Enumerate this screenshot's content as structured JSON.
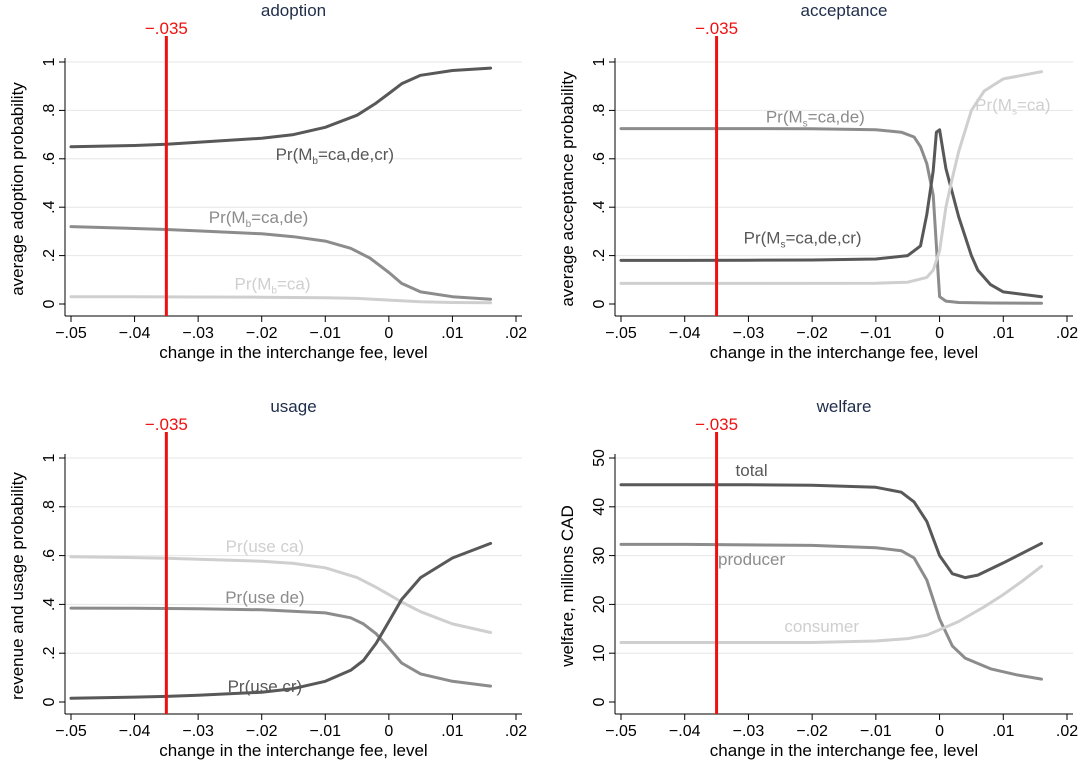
{
  "colors": {
    "dark": "#585858",
    "medium": "#8c8c8c",
    "light": "#cfcfcf",
    "reference": "#ee1111",
    "title": "#1f2d4b",
    "axis": "#000000",
    "grid": "#e6e6e6",
    "background": "#ffffff"
  },
  "chart_data": [
    {
      "id": "adoption",
      "type": "line",
      "title": "adoption",
      "xlabel": "change in the interchange fee, level",
      "ylabel": "average adoption probability",
      "xlim": [
        -0.05,
        0.02
      ],
      "ylim": [
        0,
        1
      ],
      "x_ticks": [
        -0.05,
        -0.04,
        -0.03,
        -0.02,
        -0.01,
        0,
        0.01,
        0.02
      ],
      "x_tick_labels": [
        "−.05",
        "−.04",
        "−.03",
        "−.02",
        "−.01",
        "0",
        ".01",
        ".02"
      ],
      "y_ticks": [
        0,
        0.2,
        0.4,
        0.6,
        0.8,
        1
      ],
      "y_tick_labels": [
        "0",
        ".2",
        ".4",
        ".6",
        ".8",
        "1"
      ],
      "grid": true,
      "reference_line": {
        "x": -0.035,
        "label": "−.035"
      },
      "series": [
        {
          "label_base": "Pr(M",
          "label_sub": "b",
          "label_rest": "=ca,de,cr)",
          "color": "dark",
          "label_anchor": [
            -0.0085,
            0.62
          ],
          "points": [
            [
              -0.05,
              0.65
            ],
            [
              -0.04,
              0.655
            ],
            [
              -0.035,
              0.66
            ],
            [
              -0.03,
              0.668
            ],
            [
              -0.02,
              0.685
            ],
            [
              -0.015,
              0.7
            ],
            [
              -0.01,
              0.73
            ],
            [
              -0.005,
              0.78
            ],
            [
              -0.002,
              0.83
            ],
            [
              0,
              0.87
            ],
            [
              0.002,
              0.91
            ],
            [
              0.005,
              0.945
            ],
            [
              0.01,
              0.965
            ],
            [
              0.016,
              0.975
            ]
          ]
        },
        {
          "label_base": "Pr(M",
          "label_sub": "b",
          "label_rest": "=ca,de)",
          "color": "medium",
          "label_anchor": [
            -0.0205,
            0.36
          ],
          "points": [
            [
              -0.05,
              0.32
            ],
            [
              -0.04,
              0.312
            ],
            [
              -0.035,
              0.308
            ],
            [
              -0.03,
              0.302
            ],
            [
              -0.02,
              0.29
            ],
            [
              -0.015,
              0.278
            ],
            [
              -0.01,
              0.26
            ],
            [
              -0.006,
              0.23
            ],
            [
              -0.003,
              0.19
            ],
            [
              0,
              0.13
            ],
            [
              0.002,
              0.085
            ],
            [
              0.005,
              0.05
            ],
            [
              0.01,
              0.03
            ],
            [
              0.016,
              0.02
            ]
          ]
        },
        {
          "label_base": "Pr(M",
          "label_sub": "b",
          "label_rest": "=ca)",
          "color": "light",
          "label_anchor": [
            -0.0183,
            0.085
          ],
          "points": [
            [
              -0.05,
              0.03
            ],
            [
              -0.04,
              0.03
            ],
            [
              -0.03,
              0.029
            ],
            [
              -0.02,
              0.028
            ],
            [
              -0.01,
              0.026
            ],
            [
              -0.005,
              0.023
            ],
            [
              0,
              0.016
            ],
            [
              0.005,
              0.009
            ],
            [
              0.01,
              0.006
            ],
            [
              0.016,
              0.005
            ]
          ]
        }
      ]
    },
    {
      "id": "acceptance",
      "type": "line",
      "title": "acceptance",
      "xlabel": "change in the interchange fee, level",
      "ylabel": "average acceptance probability",
      "xlim": [
        -0.05,
        0.02
      ],
      "ylim": [
        0,
        1
      ],
      "x_ticks": [
        -0.05,
        -0.04,
        -0.03,
        -0.02,
        -0.01,
        0,
        0.01,
        0.02
      ],
      "x_tick_labels": [
        "−.05",
        "−.04",
        "−.03",
        "−.02",
        "−.01",
        "0",
        ".01",
        ".02"
      ],
      "y_ticks": [
        0,
        0.2,
        0.4,
        0.6,
        0.8,
        1
      ],
      "y_tick_labels": [
        "0",
        ".2",
        ".4",
        ".6",
        ".8",
        "1"
      ],
      "grid": true,
      "reference_line": {
        "x": -0.035,
        "label": "−.035"
      },
      "series": [
        {
          "label_base": "Pr(M",
          "label_sub": "s",
          "label_rest": "=ca,de)",
          "color": "medium",
          "label_anchor": [
            -0.0195,
            0.775
          ],
          "points": [
            [
              -0.05,
              0.725
            ],
            [
              -0.04,
              0.725
            ],
            [
              -0.03,
              0.725
            ],
            [
              -0.02,
              0.724
            ],
            [
              -0.01,
              0.72
            ],
            [
              -0.006,
              0.71
            ],
            [
              -0.004,
              0.69
            ],
            [
              -0.003,
              0.65
            ],
            [
              -0.002,
              0.58
            ],
            [
              -0.001,
              0.45
            ],
            [
              0,
              0.03
            ],
            [
              0.001,
              0.012
            ],
            [
              0.003,
              0.006
            ],
            [
              0.008,
              0.004
            ],
            [
              0.016,
              0.003
            ]
          ]
        },
        {
          "label_base": "Pr(M",
          "label_sub": "s",
          "label_rest": "=ca,de,cr)",
          "color": "dark",
          "label_anchor": [
            -0.0215,
            0.275
          ],
          "points": [
            [
              -0.05,
              0.18
            ],
            [
              -0.04,
              0.18
            ],
            [
              -0.03,
              0.181
            ],
            [
              -0.02,
              0.182
            ],
            [
              -0.01,
              0.186
            ],
            [
              -0.005,
              0.2
            ],
            [
              -0.003,
              0.24
            ],
            [
              -0.002,
              0.37
            ],
            [
              -0.001,
              0.55
            ],
            [
              -0.0005,
              0.71
            ],
            [
              0,
              0.72
            ],
            [
              0.001,
              0.56
            ],
            [
              0.003,
              0.36
            ],
            [
              0.005,
              0.2
            ],
            [
              0.006,
              0.14
            ],
            [
              0.008,
              0.08
            ],
            [
              0.01,
              0.05
            ],
            [
              0.016,
              0.03
            ]
          ]
        },
        {
          "label_base": "Pr(M",
          "label_sub": "s",
          "label_rest": "=ca)",
          "color": "light",
          "label_anchor": [
            0.0115,
            0.825
          ],
          "points": [
            [
              -0.05,
              0.085
            ],
            [
              -0.03,
              0.085
            ],
            [
              -0.01,
              0.086
            ],
            [
              -0.005,
              0.09
            ],
            [
              -0.002,
              0.11
            ],
            [
              -0.001,
              0.14
            ],
            [
              0,
              0.22
            ],
            [
              0.001,
              0.4
            ],
            [
              0.002,
              0.52
            ],
            [
              0.003,
              0.63
            ],
            [
              0.005,
              0.8
            ],
            [
              0.007,
              0.88
            ],
            [
              0.01,
              0.93
            ],
            [
              0.016,
              0.96
            ]
          ]
        }
      ]
    },
    {
      "id": "usage",
      "type": "line",
      "title": "usage",
      "xlabel": "change in the interchange fee, level",
      "ylabel": "revenue and usage probability",
      "xlim": [
        -0.05,
        0.02
      ],
      "ylim": [
        0,
        1
      ],
      "x_ticks": [
        -0.05,
        -0.04,
        -0.03,
        -0.02,
        -0.01,
        0,
        0.01,
        0.02
      ],
      "x_tick_labels": [
        "−.05",
        "−.04",
        "−.03",
        "−.02",
        "−.01",
        "0",
        ".01",
        ".02"
      ],
      "y_ticks": [
        0,
        0.2,
        0.4,
        0.6,
        0.8,
        1
      ],
      "y_tick_labels": [
        "0",
        ".2",
        ".4",
        ".6",
        ".8",
        "1"
      ],
      "grid": true,
      "reference_line": {
        "x": -0.035,
        "label": "−.035"
      },
      "series": [
        {
          "label_base": "Pr(use ca)",
          "color": "light",
          "label_anchor": [
            -0.0195,
            0.64
          ],
          "points": [
            [
              -0.05,
              0.595
            ],
            [
              -0.04,
              0.592
            ],
            [
              -0.035,
              0.589
            ],
            [
              -0.03,
              0.585
            ],
            [
              -0.02,
              0.577
            ],
            [
              -0.015,
              0.568
            ],
            [
              -0.01,
              0.55
            ],
            [
              -0.005,
              0.51
            ],
            [
              -0.002,
              0.47
            ],
            [
              0,
              0.44
            ],
            [
              0.002,
              0.41
            ],
            [
              0.005,
              0.37
            ],
            [
              0.01,
              0.32
            ],
            [
              0.016,
              0.285
            ]
          ]
        },
        {
          "label_base": "Pr(use de)",
          "color": "medium",
          "label_anchor": [
            -0.0195,
            0.43
          ],
          "points": [
            [
              -0.05,
              0.385
            ],
            [
              -0.04,
              0.384
            ],
            [
              -0.03,
              0.382
            ],
            [
              -0.02,
              0.378
            ],
            [
              -0.01,
              0.365
            ],
            [
              -0.006,
              0.345
            ],
            [
              -0.004,
              0.32
            ],
            [
              -0.002,
              0.28
            ],
            [
              0,
              0.22
            ],
            [
              0.002,
              0.16
            ],
            [
              0.005,
              0.115
            ],
            [
              0.01,
              0.085
            ],
            [
              0.016,
              0.065
            ]
          ]
        },
        {
          "label_base": "Pr(use cr)",
          "color": "dark",
          "label_anchor": [
            -0.0195,
            0.065
          ],
          "points": [
            [
              -0.05,
              0.015
            ],
            [
              -0.04,
              0.02
            ],
            [
              -0.035,
              0.023
            ],
            [
              -0.03,
              0.028
            ],
            [
              -0.02,
              0.04
            ],
            [
              -0.015,
              0.055
            ],
            [
              -0.01,
              0.085
            ],
            [
              -0.006,
              0.13
            ],
            [
              -0.004,
              0.17
            ],
            [
              -0.002,
              0.24
            ],
            [
              0,
              0.33
            ],
            [
              0.002,
              0.42
            ],
            [
              0.005,
              0.51
            ],
            [
              0.01,
              0.59
            ],
            [
              0.016,
              0.65
            ]
          ]
        }
      ]
    },
    {
      "id": "welfare",
      "type": "line",
      "title": "welfare",
      "xlabel": "change in the interchange fee, level",
      "ylabel": "welfare, millions CAD",
      "xlim": [
        -0.05,
        0.02
      ],
      "ylim": [
        0,
        50
      ],
      "x_ticks": [
        -0.05,
        -0.04,
        -0.03,
        -0.02,
        -0.01,
        0,
        0.01,
        0.02
      ],
      "x_tick_labels": [
        "−.05",
        "−.04",
        "−.03",
        "−.02",
        "−.01",
        "0",
        ".01",
        ".02"
      ],
      "y_ticks": [
        0,
        10,
        20,
        30,
        40,
        50
      ],
      "y_tick_labels": [
        "0",
        "10",
        "20",
        "30",
        "40",
        "50"
      ],
      "grid": true,
      "reference_line": {
        "x": -0.035,
        "label": "−.035"
      },
      "series": [
        {
          "label_base": "total",
          "color": "dark",
          "label_anchor": [
            -0.0295,
            47.5
          ],
          "points": [
            [
              -0.05,
              44.5
            ],
            [
              -0.04,
              44.5
            ],
            [
              -0.03,
              44.5
            ],
            [
              -0.02,
              44.4
            ],
            [
              -0.01,
              44.0
            ],
            [
              -0.006,
              43.0
            ],
            [
              -0.004,
              41.0
            ],
            [
              -0.002,
              37.0
            ],
            [
              0,
              30.0
            ],
            [
              0.002,
              26.3
            ],
            [
              0.004,
              25.5
            ],
            [
              0.006,
              26.0
            ],
            [
              0.01,
              28.5
            ],
            [
              0.016,
              32.5
            ]
          ]
        },
        {
          "label_base": "producer",
          "color": "medium",
          "label_anchor": [
            -0.0295,
            29.3
          ],
          "points": [
            [
              -0.05,
              32.3
            ],
            [
              -0.04,
              32.3
            ],
            [
              -0.03,
              32.2
            ],
            [
              -0.02,
              32.1
            ],
            [
              -0.01,
              31.6
            ],
            [
              -0.006,
              31.0
            ],
            [
              -0.004,
              29.5
            ],
            [
              -0.002,
              25.0
            ],
            [
              0,
              17.0
            ],
            [
              0.002,
              11.5
            ],
            [
              0.004,
              9.0
            ],
            [
              0.008,
              6.8
            ],
            [
              0.012,
              5.6
            ],
            [
              0.016,
              4.7
            ]
          ]
        },
        {
          "label_base": "consumer",
          "color": "light",
          "label_anchor": [
            -0.0185,
            15.6
          ],
          "points": [
            [
              -0.05,
              12.2
            ],
            [
              -0.04,
              12.2
            ],
            [
              -0.03,
              12.2
            ],
            [
              -0.02,
              12.2
            ],
            [
              -0.01,
              12.5
            ],
            [
              -0.005,
              13.0
            ],
            [
              -0.002,
              13.7
            ],
            [
              0,
              14.8
            ],
            [
              0.003,
              16.5
            ],
            [
              0.007,
              19.5
            ],
            [
              0.01,
              22.0
            ],
            [
              0.013,
              24.8
            ],
            [
              0.016,
              27.8
            ]
          ]
        }
      ]
    }
  ]
}
